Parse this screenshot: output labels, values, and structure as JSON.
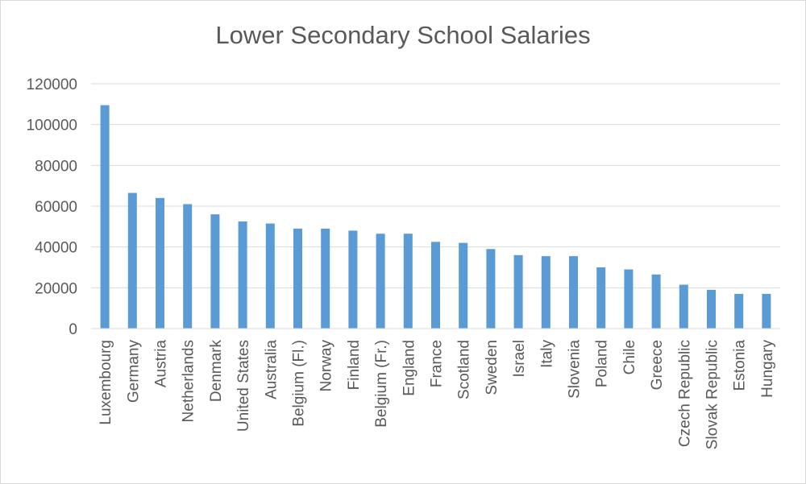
{
  "chart_data": {
    "type": "bar",
    "title": "Lower Secondary School Salaries",
    "xlabel": "",
    "ylabel": "",
    "ylim": [
      0,
      120000
    ],
    "yticks": [
      0,
      20000,
      40000,
      60000,
      80000,
      100000,
      120000
    ],
    "grid": true,
    "legend": "none",
    "color": "#5b9bd5",
    "categories": [
      "Luxembourg",
      "Germany",
      "Austria",
      "Netherlands",
      "Denmark",
      "United States",
      "Australia",
      "Belgium (Fl.)",
      "Norway",
      "Finland",
      "Belgium (Fr.)",
      "England",
      "France",
      "Scotland",
      "Sweden",
      "Israel",
      "Italy",
      "Slovenia",
      "Poland",
      "Chile",
      "Greece",
      "Czech Republic",
      "Slovak Republic",
      "Estonia",
      "Hungary"
    ],
    "values": [
      109500,
      66500,
      64000,
      61000,
      56000,
      52500,
      51500,
      49000,
      49000,
      48000,
      46500,
      46500,
      42500,
      42000,
      39000,
      36000,
      35500,
      35500,
      30000,
      29000,
      26500,
      21500,
      19000,
      17000,
      17000
    ]
  }
}
